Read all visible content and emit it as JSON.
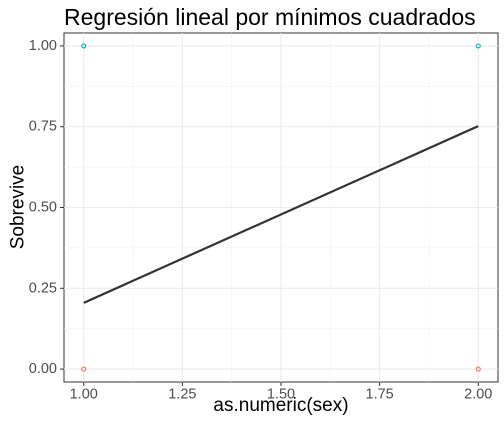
{
  "chart_data": {
    "type": "scatter",
    "title": "Regresión lineal por mínimos cuadrados",
    "xlabel": "as.numeric(sex)",
    "ylabel": "Sobrevive",
    "xlim": [
      0.95,
      2.05
    ],
    "ylim": [
      -0.04,
      1.04
    ],
    "x_ticks": [
      {
        "value": 1.0,
        "label": "1.00"
      },
      {
        "value": 1.25,
        "label": "1.25"
      },
      {
        "value": 1.5,
        "label": "1.50"
      },
      {
        "value": 1.75,
        "label": "1.75"
      },
      {
        "value": 2.0,
        "label": "2.00"
      }
    ],
    "y_ticks": [
      {
        "value": 0.0,
        "label": "0.00"
      },
      {
        "value": 0.25,
        "label": "0.25"
      },
      {
        "value": 0.5,
        "label": "0.50"
      },
      {
        "value": 0.75,
        "label": "0.75"
      },
      {
        "value": 1.0,
        "label": "1.00"
      }
    ],
    "grid": true,
    "legend": "none",
    "points": [
      {
        "x": 1.0,
        "y": 1.0,
        "color": "#00BFC4"
      },
      {
        "x": 2.0,
        "y": 1.0,
        "color": "#00BFC4"
      },
      {
        "x": 1.0,
        "y": 0.0,
        "color": "#F8766D"
      },
      {
        "x": 2.0,
        "y": 0.0,
        "color": "#F8766D"
      }
    ],
    "regression_line": {
      "x": [
        1.0,
        2.0
      ],
      "y": [
        0.205,
        0.752
      ],
      "color": "#333333"
    }
  }
}
